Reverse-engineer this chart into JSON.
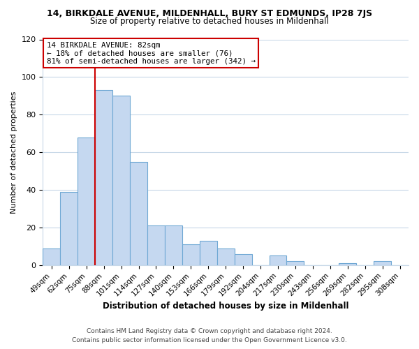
{
  "title": "14, BIRKDALE AVENUE, MILDENHALL, BURY ST EDMUNDS, IP28 7JS",
  "subtitle": "Size of property relative to detached houses in Mildenhall",
  "xlabel": "Distribution of detached houses by size in Mildenhall",
  "ylabel": "Number of detached properties",
  "bar_labels": [
    "49sqm",
    "62sqm",
    "75sqm",
    "88sqm",
    "101sqm",
    "114sqm",
    "127sqm",
    "140sqm",
    "153sqm",
    "166sqm",
    "179sqm",
    "192sqm",
    "204sqm",
    "217sqm",
    "230sqm",
    "243sqm",
    "256sqm",
    "269sqm",
    "282sqm",
    "295sqm",
    "308sqm"
  ],
  "bar_values": [
    9,
    39,
    68,
    93,
    90,
    55,
    21,
    21,
    11,
    13,
    9,
    6,
    0,
    5,
    2,
    0,
    0,
    1,
    0,
    2,
    0
  ],
  "bar_color": "#c5d8f0",
  "bar_edge_color": "#6fa8d4",
  "vline_color": "#cc0000",
  "vline_x_index": 3,
  "annotation_title": "14 BIRKDALE AVENUE: 82sqm",
  "annotation_line1": "← 18% of detached houses are smaller (76)",
  "annotation_line2": "81% of semi-detached houses are larger (342) →",
  "annotation_box_color": "#ffffff",
  "annotation_box_edge": "#cc0000",
  "ylim": [
    0,
    120
  ],
  "yticks": [
    0,
    20,
    40,
    60,
    80,
    100,
    120
  ],
  "footer_line1": "Contains HM Land Registry data © Crown copyright and database right 2024.",
  "footer_line2": "Contains public sector information licensed under the Open Government Licence v3.0.",
  "background_color": "#ffffff",
  "grid_color": "#c8d8e8"
}
